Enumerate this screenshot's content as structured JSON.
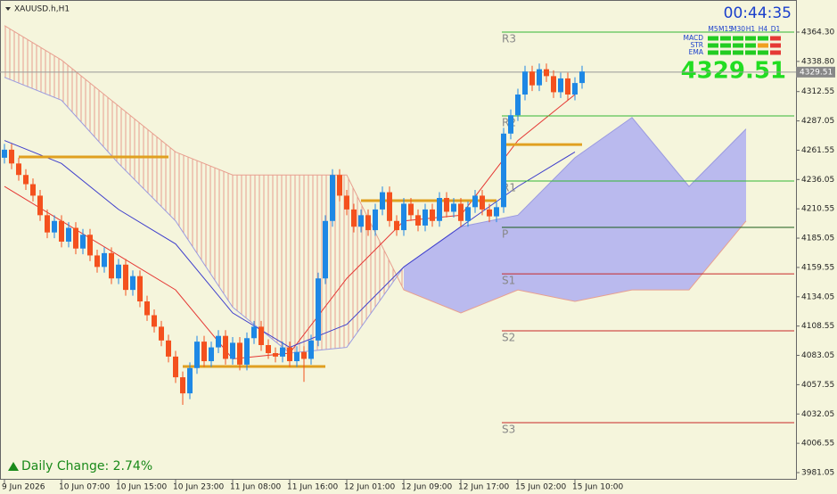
{
  "chart_data": {
    "type": "candlestick",
    "symbol": "XAUUSD.h,H1",
    "timer": "00:44:35",
    "last_price": 4329.51,
    "daily_change": "Daily Change: 2.74%",
    "ylim": [
      3974.85,
      4392.23
    ],
    "yticks": [
      {
        "value": 4364.3,
        "label": "4364.30"
      },
      {
        "value": 4338.8,
        "label": "4338.80"
      },
      4312.55,
      4287.05,
      4261.55,
      4236.05,
      4210.55,
      4185.05,
      4159.55,
      4134.05,
      4108.55,
      4083.05,
      4057.55,
      4032.05,
      4006.55,
      3981.05
    ],
    "x_labels": [
      {
        "bar": 0,
        "label": "9 Jun 2026"
      },
      {
        "bar": 8,
        "label": "10 Jun 07:00"
      },
      {
        "bar": 16,
        "label": "10 Jun 15:00"
      },
      {
        "bar": 24,
        "label": "10 Jun 23:00"
      },
      {
        "bar": 32,
        "label": "11 Jun 08:00"
      },
      {
        "bar": 40,
        "label": "11 Jun 16:00"
      },
      {
        "bar": 48,
        "label": "12 Jun 01:00"
      },
      {
        "bar": 56,
        "label": "12 Jun 09:00"
      },
      {
        "bar": 64,
        "label": "12 Jun 17:00"
      },
      {
        "bar": 72,
        "label": "15 Jun 02:00"
      },
      {
        "bar": 80,
        "label": "15 Jun 10:00"
      }
    ],
    "up_color": "#1e88e5",
    "down_color": "#f4511e",
    "ohlc": [
      [
        4255,
        4267,
        4250,
        4262
      ],
      [
        4262,
        4267,
        4245,
        4250
      ],
      [
        4250,
        4255,
        4235,
        4240
      ],
      [
        4240,
        4245,
        4227,
        4232
      ],
      [
        4232,
        4237,
        4217,
        4222
      ],
      [
        4222,
        4227,
        4200,
        4205
      ],
      [
        4205,
        4210,
        4185,
        4190
      ],
      [
        4190,
        4205,
        4185,
        4200
      ],
      [
        4200,
        4205,
        4177,
        4182
      ],
      [
        4182,
        4199,
        4177,
        4194
      ],
      [
        4194,
        4199,
        4171,
        4176
      ],
      [
        4176,
        4193,
        4171,
        4188
      ],
      [
        4188,
        4193,
        4165,
        4170
      ],
      [
        4170,
        4175,
        4155,
        4160
      ],
      [
        4160,
        4177,
        4155,
        4172
      ],
      [
        4172,
        4177,
        4145,
        4150
      ],
      [
        4150,
        4167,
        4145,
        4162
      ],
      [
        4162,
        4167,
        4135,
        4140
      ],
      [
        4140,
        4157,
        4135,
        4152
      ],
      [
        4152,
        4157,
        4125,
        4130
      ],
      [
        4130,
        4135,
        4113,
        4118
      ],
      [
        4118,
        4123,
        4103,
        4108
      ],
      [
        4108,
        4113,
        4091,
        4096
      ],
      [
        4096,
        4101,
        4077,
        4082
      ],
      [
        4082,
        4087,
        4059,
        4064
      ],
      [
        4064,
        4069,
        4040,
        4050
      ],
      [
        4050,
        4077,
        4045,
        4072
      ],
      [
        4072,
        4100,
        4067,
        4095
      ],
      [
        4095,
        4100,
        4073,
        4078
      ],
      [
        4078,
        4095,
        4073,
        4090
      ],
      [
        4090,
        4105,
        4085,
        4100
      ],
      [
        4100,
        4105,
        4075,
        4080
      ],
      [
        4080,
        4099,
        4075,
        4094
      ],
      [
        4094,
        4099,
        4070,
        4075
      ],
      [
        4075,
        4103,
        4070,
        4098
      ],
      [
        4098,
        4113,
        4093,
        4108
      ],
      [
        4108,
        4113,
        4087,
        4092
      ],
      [
        4092,
        4097,
        4080,
        4085
      ],
      [
        4085,
        4090,
        4077,
        4082
      ],
      [
        4082,
        4095,
        4077,
        4090
      ],
      [
        4090,
        4095,
        4073,
        4078
      ],
      [
        4078,
        4091,
        4073,
        4086
      ],
      [
        4086,
        4091,
        4060,
        4080
      ],
      [
        4080,
        4101,
        4075,
        4096
      ],
      [
        4096,
        4155,
        4091,
        4150
      ],
      [
        4150,
        4205,
        4145,
        4200
      ],
      [
        4200,
        4245,
        4195,
        4240
      ],
      [
        4240,
        4245,
        4217,
        4222
      ],
      [
        4222,
        4227,
        4205,
        4210
      ],
      [
        4210,
        4215,
        4190,
        4195
      ],
      [
        4195,
        4210,
        4190,
        4205
      ],
      [
        4205,
        4210,
        4187,
        4192
      ],
      [
        4192,
        4215,
        4187,
        4210
      ],
      [
        4210,
        4230,
        4205,
        4225
      ],
      [
        4225,
        4230,
        4195,
        4200
      ],
      [
        4200,
        4205,
        4187,
        4192
      ],
      [
        4192,
        4220,
        4187,
        4215
      ],
      [
        4215,
        4220,
        4200,
        4205
      ],
      [
        4205,
        4210,
        4191,
        4196
      ],
      [
        4196,
        4215,
        4191,
        4210
      ],
      [
        4210,
        4215,
        4195,
        4200
      ],
      [
        4200,
        4225,
        4195,
        4220
      ],
      [
        4220,
        4225,
        4203,
        4208
      ],
      [
        4208,
        4220,
        4203,
        4215
      ],
      [
        4215,
        4220,
        4195,
        4200
      ],
      [
        4200,
        4217,
        4195,
        4212
      ],
      [
        4212,
        4227,
        4207,
        4222
      ],
      [
        4222,
        4227,
        4205,
        4210
      ],
      [
        4210,
        4215,
        4199,
        4204
      ],
      [
        4204,
        4217,
        4199,
        4212
      ],
      [
        4212,
        4281,
        4207,
        4276
      ],
      [
        4276,
        4297,
        4271,
        4292
      ],
      [
        4292,
        4315,
        4287,
        4310
      ],
      [
        4310,
        4335,
        4305,
        4330
      ],
      [
        4330,
        4335,
        4313,
        4318
      ],
      [
        4318,
        4337,
        4313,
        4332
      ],
      [
        4332,
        4337,
        4321,
        4326
      ],
      [
        4326,
        4331,
        4307,
        4312
      ],
      [
        4312,
        4329,
        4307,
        4324
      ],
      [
        4324,
        4329,
        4305,
        4310
      ],
      [
        4310,
        4325,
        4305,
        4320
      ],
      [
        4320,
        4335,
        4315,
        4330
      ]
    ],
    "ichimoku": {
      "cloud_x": [
        0,
        8,
        16,
        24,
        32,
        40,
        48,
        56,
        64,
        72,
        80,
        88,
        96,
        104
      ],
      "span_a": [
        4325,
        4305,
        4250,
        4200,
        4125,
        4085,
        4090,
        4160,
        4195,
        4205,
        4255,
        4290,
        4230,
        4280
      ],
      "span_b": [
        4370,
        4340,
        4300,
        4260,
        4240,
        4240,
        4240,
        4140,
        4120,
        4140,
        4130,
        4140,
        4140,
        4200
      ],
      "line_x": [
        0,
        8,
        16,
        24,
        32,
        40,
        48,
        56,
        64,
        72,
        80
      ],
      "tenkan": [
        4230,
        4200,
        4170,
        4140,
        4080,
        4085,
        4150,
        4200,
        4205,
        4270,
        4310
      ],
      "kijun": [
        4270,
        4250,
        4210,
        4180,
        4120,
        4090,
        4110,
        4160,
        4195,
        4230,
        4260
      ],
      "span_a_color": "#b4b4f0",
      "span_b_color": "#e8a090",
      "tenkan_color": "#e53935",
      "kijun_color": "#3f3fcc"
    },
    "pivots": [
      {
        "name": "R3",
        "value": 4364.3,
        "color": "#33b833"
      },
      {
        "name": "R2",
        "value": 4291.4,
        "color": "#33b833"
      },
      {
        "name": "R1",
        "value": 4234.7,
        "color": "#33b833"
      },
      {
        "name": "P",
        "value": 4194.4,
        "color": "#1a5c1a"
      },
      {
        "name": "S1",
        "value": 4154.0,
        "color": "#c62828"
      },
      {
        "name": "S2",
        "value": 4104.4,
        "color": "#c62828"
      },
      {
        "name": "S3",
        "value": 4024.5,
        "color": "#c62828"
      }
    ],
    "levels": [
      {
        "value": 4255.7,
        "from": 2,
        "to": 23
      },
      {
        "value": 4073.4,
        "from": 25,
        "to": 45
      },
      {
        "value": 4217.7,
        "from": 50,
        "to": 69
      },
      {
        "value": 4266.5,
        "from": 70,
        "to": 81
      }
    ],
    "level_color": "#e0a020",
    "signals": {
      "timeframes": [
        "M5",
        "M15",
        "M30",
        "H1",
        "H4",
        "D1"
      ],
      "rows": [
        {
          "name": "MACD",
          "colors": [
            "#22cc22",
            "#22cc22",
            "#22cc22",
            "#22cc22",
            "#22cc22",
            "#e53935"
          ]
        },
        {
          "name": "STR",
          "colors": [
            "#22cc22",
            "#22cc22",
            "#22cc22",
            "#22cc22",
            "#f0a020",
            "#e53935"
          ]
        },
        {
          "name": "EMA",
          "colors": [
            "#22cc22",
            "#22cc22",
            "#22cc22",
            "#22cc22",
            "#22cc22",
            "#e53935"
          ]
        }
      ]
    }
  }
}
